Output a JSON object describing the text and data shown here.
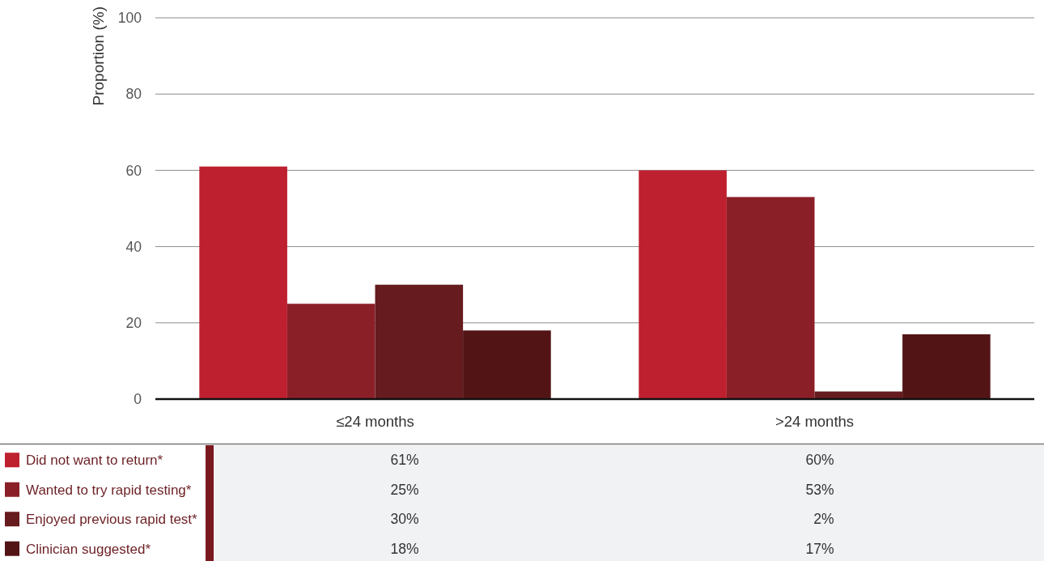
{
  "chart_data": {
    "type": "bar",
    "ylabel": "Proportion (%)",
    "categories": [
      "≤24 months",
      ">24 months"
    ],
    "series": [
      {
        "name": "Did not want to return*",
        "color": "#be2030",
        "values": [
          61,
          60
        ],
        "value_labels": [
          "61%",
          "60%"
        ]
      },
      {
        "name": "Wanted to try rapid testing*",
        "color": "#8a1f28",
        "values": [
          25,
          53
        ],
        "value_labels": [
          "25%",
          "53%"
        ]
      },
      {
        "name": "Enjoyed previous rapid test*",
        "color": "#661b1f",
        "values": [
          30,
          2
        ],
        "value_labels": [
          "30%",
          "2%"
        ]
      },
      {
        "name": "Clinician suggested*",
        "color": "#531416",
        "values": [
          18,
          17
        ],
        "value_labels": [
          "18%",
          "17%"
        ]
      }
    ],
    "ylim": [
      0,
      100
    ],
    "yticks": [
      0,
      20,
      40,
      60,
      80,
      100
    ],
    "grid": "y",
    "legend": "bottom"
  }
}
